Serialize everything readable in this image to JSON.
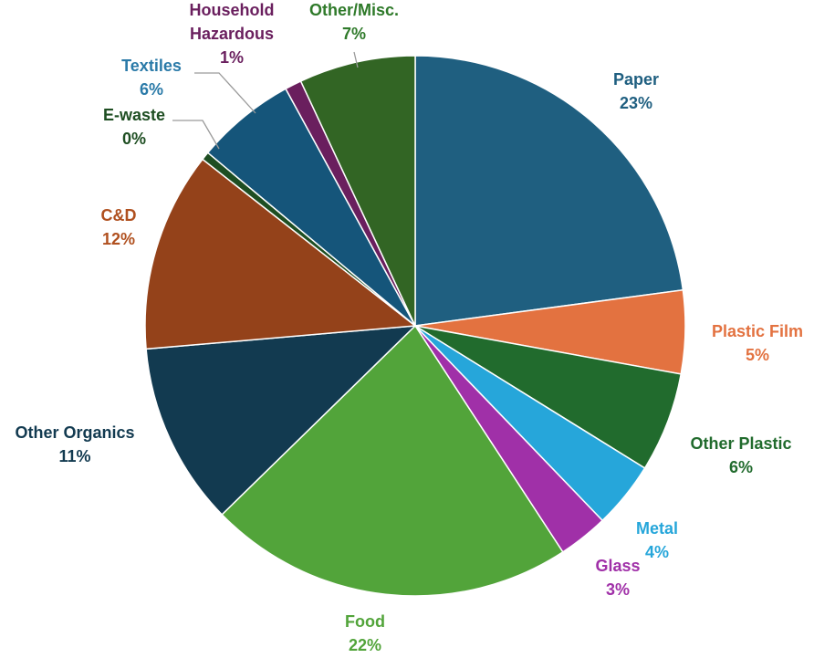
{
  "chart_data": {
    "type": "pie",
    "title": "",
    "slices": [
      {
        "name": "Paper",
        "pct_label": "23%",
        "value": 23,
        "color": "#1f5f80",
        "label_color": "#1f5f80"
      },
      {
        "name": "Plastic Film",
        "pct_label": "5%",
        "value": 5,
        "color": "#e37240",
        "label_color": "#e37240"
      },
      {
        "name": "Other Plastic",
        "pct_label": "6%",
        "value": 6,
        "color": "#216b2d",
        "label_color": "#216b2d"
      },
      {
        "name": "Metal",
        "pct_label": "4%",
        "value": 4,
        "color": "#26a6da",
        "label_color": "#26a6da"
      },
      {
        "name": "Glass",
        "pct_label": "3%",
        "value": 3,
        "color": "#a030a8",
        "label_color": "#a030a8"
      },
      {
        "name": "Food",
        "pct_label": "22%",
        "value": 22,
        "color": "#52a43a",
        "label_color": "#52a43a"
      },
      {
        "name": "Other Organics",
        "pct_label": "11%",
        "value": 11,
        "color": "#123a50",
        "label_color": "#123a50"
      },
      {
        "name": "C&D",
        "pct_label": "12%",
        "value": 12,
        "color": "#94421a",
        "label_color": "#b0501f"
      },
      {
        "name": "E-waste",
        "pct_label": "0%",
        "value": 0.5,
        "color": "#1e4e22",
        "label_color": "#1e4e22"
      },
      {
        "name": "Textiles",
        "pct_label": "6%",
        "value": 6,
        "color": "#15557a",
        "label_color": "#2a7aa8"
      },
      {
        "name": "Household Hazardous",
        "pct_label": "1%",
        "value": 1,
        "color": "#6a1f5e",
        "label_color": "#6a1f5e"
      },
      {
        "name": "Other/Misc.",
        "pct_label": "7%",
        "value": 7,
        "color": "#326524",
        "label_color": "#2f7a2a"
      }
    ]
  }
}
